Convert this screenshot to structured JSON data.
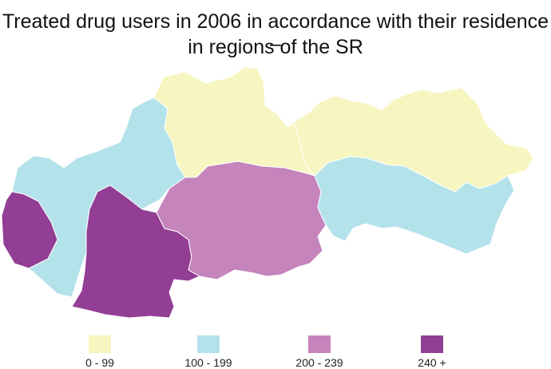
{
  "title": {
    "line1": "Treated drug users in 2006 in accordance with their residence –",
    "line2": "in regions of the SR"
  },
  "legend": [
    {
      "label": "0 - 99",
      "color": "#f7f5c0"
    },
    {
      "label": "100 - 199",
      "color": "#b4e2eb"
    },
    {
      "label": "200 - 239",
      "color": "#c584bc"
    },
    {
      "label": "240 +",
      "color": "#923e95"
    }
  ],
  "regions": [
    {
      "class_index": 1
    },
    {
      "class_index": 3
    },
    {
      "class_index": 1
    },
    {
      "class_index": 3
    },
    {
      "class_index": 0
    },
    {
      "class_index": 2
    },
    {
      "class_index": 0
    },
    {
      "class_index": 1
    }
  ]
}
